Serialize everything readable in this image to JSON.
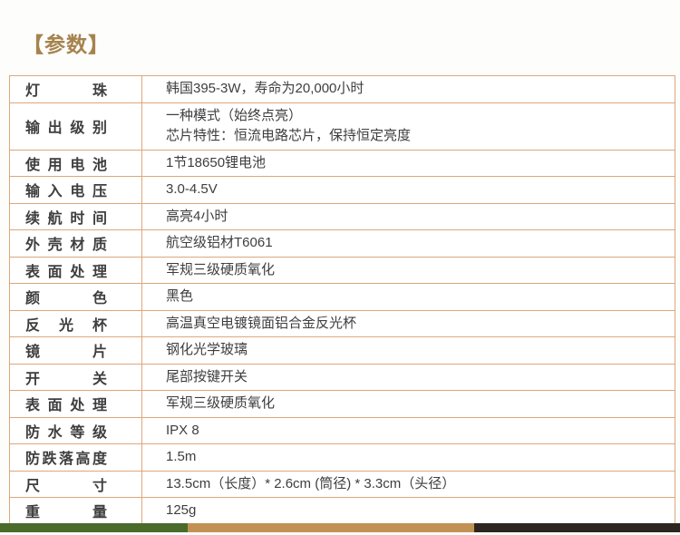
{
  "page": {
    "title": "【参数】"
  },
  "colors": {
    "title_gold": "#a6834e",
    "table_border": "#dca87c",
    "text": "#3e3e3e",
    "cell_background": "#ffffff"
  },
  "spec_table": {
    "rows": [
      {
        "label": "灯珠",
        "value": "韩国395-3W，寿命为20,000小时"
      },
      {
        "label": "输出级别",
        "value": "一种模式（始终点亮）\n芯片特性：恒流电路芯片，保持恒定亮度"
      },
      {
        "label": "使用电池",
        "value": "1节18650锂电池"
      },
      {
        "label": "输入电压",
        "value": "3.0-4.5V"
      },
      {
        "label": "续航时间",
        "value": "高亮4小时"
      },
      {
        "label": "外壳材质",
        "value": "航空级铝材T6061"
      },
      {
        "label": "表面处理",
        "value": "军规三级硬质氧化"
      },
      {
        "label": "颜色",
        "value": "黑色"
      },
      {
        "label": "反光杯",
        "value": "高温真空电镀镜面铝合金反光杯"
      },
      {
        "label": "镜片",
        "value": "钢化光学玻璃"
      },
      {
        "label": "开关",
        "value": "尾部按键开关"
      },
      {
        "label": "表面处理",
        "value": "军规三级硬质氧化"
      },
      {
        "label": "防水等级",
        "value": "IPX 8"
      },
      {
        "label": "防跌落高度",
        "value": "1.5m"
      },
      {
        "label": "尺寸",
        "value": "13.5cm（长度）* 2.6cm (筒径) * 3.3cm（头径）"
      },
      {
        "label": "重量",
        "value": "125g"
      }
    ]
  },
  "footer_bars": [
    {
      "name": "green",
      "color": "#4a6b2c"
    },
    {
      "name": "tan",
      "color": "#c19254"
    },
    {
      "name": "dark-brown",
      "color": "#2e2520"
    }
  ]
}
